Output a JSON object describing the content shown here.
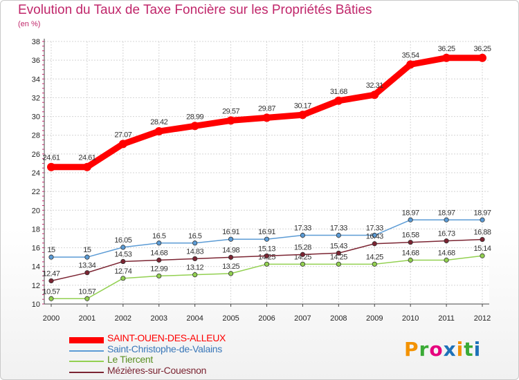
{
  "chart_data": {
    "type": "line",
    "title": "Evolution du Taux de Taxe Foncière sur les Propriétés Bâties",
    "subtitle": "(en %)",
    "xlabel": "",
    "ylabel": "",
    "ylim": [
      10,
      38
    ],
    "yticks": [
      10,
      12,
      14,
      16,
      18,
      20,
      22,
      24,
      26,
      28,
      30,
      32,
      34,
      36,
      38
    ],
    "grid": true,
    "legend_position": "bottom-left",
    "categories": [
      "2000",
      "2001",
      "2002",
      "2003",
      "2004",
      "2005",
      "2006",
      "2007",
      "2008",
      "2009",
      "2010",
      "2011",
      "2012"
    ],
    "series": [
      {
        "name": "SAINT-OUEN-DES-ALLEUX",
        "color": "#ff0000",
        "values": [
          24.61,
          24.61,
          27.07,
          28.42,
          28.99,
          29.57,
          29.87,
          30.17,
          31.68,
          32.31,
          35.54,
          36.25,
          36.25
        ],
        "labels": [
          "24.61",
          "24.61",
          "27.07",
          "28.42",
          "28.99",
          "29.57",
          "29.87",
          "30.17",
          "31.68",
          "32.31",
          "35.54",
          "36.25",
          "36.25"
        ]
      },
      {
        "name": "Saint-Christophe-de-Valains",
        "color": "#5b9bd5",
        "values": [
          15,
          15,
          16.05,
          16.5,
          16.5,
          16.91,
          16.91,
          17.33,
          17.33,
          17.33,
          18.97,
          18.97,
          18.97
        ],
        "labels": [
          "15",
          "15",
          "16.05",
          "16.5",
          "16.5",
          "16.91",
          "16.91",
          "17.33",
          "17.33",
          "17.33",
          "18.97",
          "18.97",
          "18.97"
        ]
      },
      {
        "name": "Le Tiercent",
        "color": "#92d050",
        "values": [
          10.57,
          10.57,
          12.74,
          12.99,
          13.12,
          13.25,
          14.25,
          14.25,
          14.25,
          14.25,
          14.68,
          14.68,
          15.14
        ],
        "labels": [
          "10.57",
          "10.57",
          "12.74",
          "12.99",
          "13.12",
          "13.25",
          "14.25",
          "14.25",
          "14.25",
          "14.25",
          "14.68",
          "14.68",
          "15.14"
        ]
      },
      {
        "name": "Mézières-sur-Couesnon",
        "color": "#7b2432",
        "values": [
          12.47,
          13.34,
          14.53,
          14.68,
          14.83,
          14.98,
          15.13,
          15.28,
          15.43,
          16.43,
          16.58,
          16.73,
          16.88
        ],
        "labels": [
          "12.47",
          "13.34",
          "14.53",
          "14.68",
          "14.83",
          "14.98",
          "15.13",
          "15.28",
          "15.43",
          "16.43",
          "16.58",
          "16.73",
          "16.88"
        ]
      }
    ]
  },
  "logo": {
    "text": "Proxiti"
  }
}
